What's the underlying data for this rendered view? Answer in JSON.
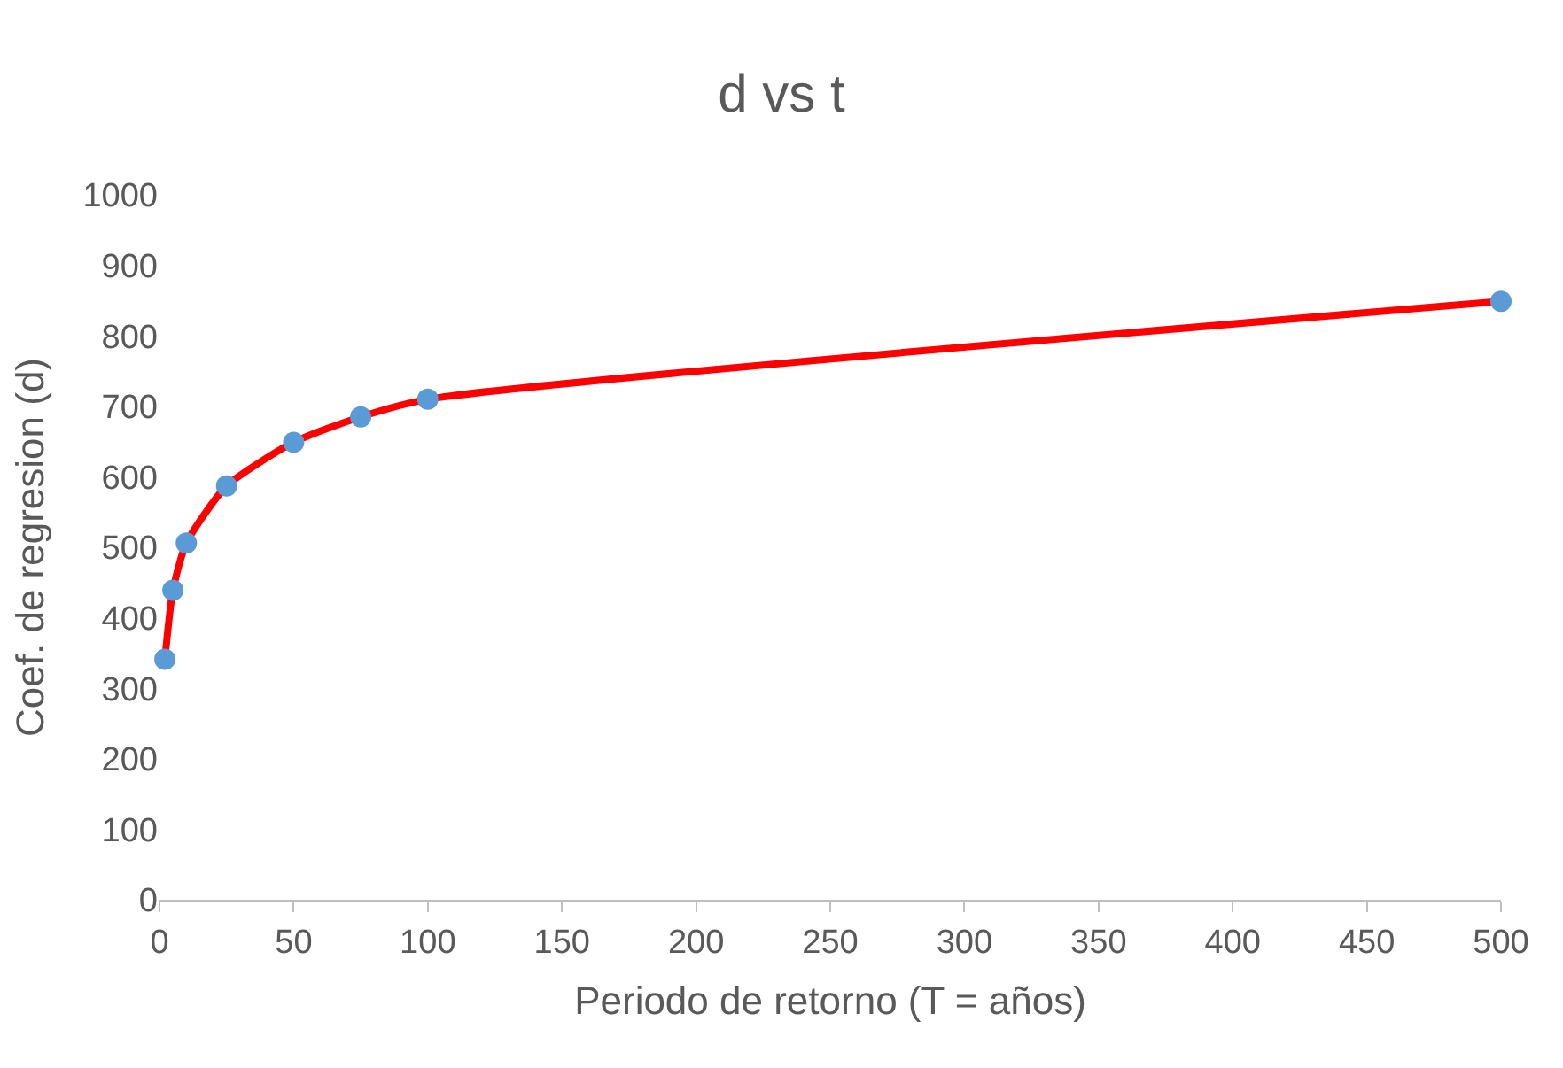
{
  "chart_data": {
    "type": "line",
    "title": "d vs t",
    "xlabel": "Periodo de retorno (T = años)",
    "ylabel": "Coef. de regresion (d)",
    "x": [
      2,
      5,
      10,
      25,
      50,
      75,
      100,
      500
    ],
    "series": [
      {
        "color": "#ff0000",
        "values": [
          341,
          439,
          506,
          587,
          649,
          685,
          710,
          849
        ]
      }
    ],
    "marker": "circle",
    "line_style": "solid",
    "xlim": [
      0,
      500
    ],
    "xticks": [
      0,
      50,
      100,
      150,
      200,
      250,
      300,
      350,
      400,
      450,
      500
    ],
    "ylim": [
      0,
      1000
    ],
    "yticks": [
      0,
      100,
      200,
      300,
      400,
      500,
      600,
      700,
      800,
      900,
      1000
    ]
  }
}
